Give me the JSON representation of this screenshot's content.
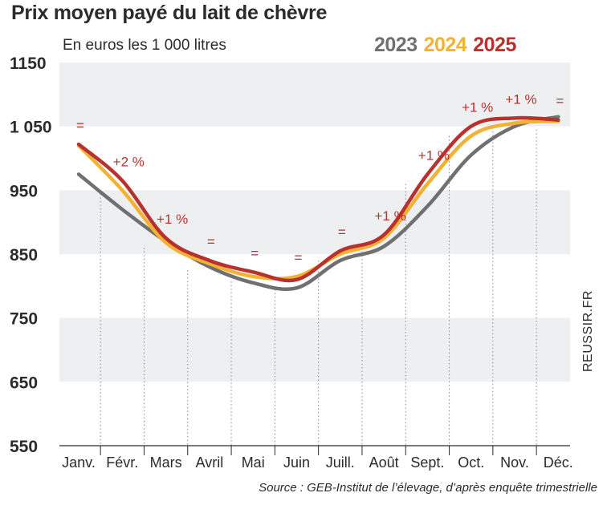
{
  "header": {
    "title": "Prix moyen payé du lait de chèvre",
    "subtitle": "En euros les 1 000 litres"
  },
  "source": "Source : GEB-Institut de l’élevage, d’après enquête trimestrielle",
  "credit": "REUSSIR.FR",
  "chart_data": {
    "type": "line",
    "title": "Prix moyen payé du lait de chèvre",
    "subtitle": "En euros les 1 000 litres",
    "categories": [
      "Janv.",
      "Févr.",
      "Mars",
      "Avril",
      "Mai",
      "Juin",
      "Juill.",
      "Août",
      "Sept.",
      "Oct.",
      "Nov.",
      "Déc."
    ],
    "y_ticks": [
      "1150",
      "1 050",
      "950",
      "850",
      "750",
      "650",
      "550"
    ],
    "ylim": [
      550,
      1150
    ],
    "grid": "alternating horizontal bands",
    "series": [
      {
        "name": "2023",
        "color": "#707070",
        "values": [
          975,
          920,
          870,
          830,
          805,
          797,
          840,
          862,
          925,
          1005,
          1050,
          1065
        ]
      },
      {
        "name": "2024",
        "color": "#f2b233",
        "values": [
          1020,
          950,
          868,
          835,
          815,
          815,
          850,
          875,
          960,
          1035,
          1055,
          1058
        ]
      },
      {
        "name": "2025",
        "color": "#b8312f",
        "values": [
          1022,
          965,
          875,
          840,
          822,
          810,
          855,
          880,
          975,
          1050,
          1063,
          1060
        ]
      }
    ],
    "annotations": [
      "=",
      "+2 %",
      "+1 %",
      "=",
      "=",
      "=",
      "=",
      "+1 %",
      "+1 %",
      "+1 %",
      "+1 %",
      "="
    ],
    "legend_position": "top-right"
  }
}
